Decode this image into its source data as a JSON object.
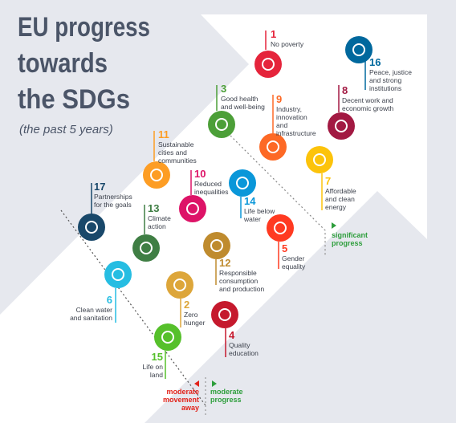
{
  "header": {
    "title_lines": [
      "EU progress",
      "towards",
      "the SDGs"
    ],
    "subtitle": "(the past 5 years)"
  },
  "goals": [
    {
      "number": "1",
      "label_lines": [
        "No poverty"
      ],
      "color": "#e5243b"
    },
    {
      "number": "16",
      "label_lines": [
        "Peace, justice",
        "and strong",
        "institutions"
      ],
      "color": "#00689d"
    },
    {
      "number": "8",
      "label_lines": [
        "Decent work and",
        "economic growth"
      ],
      "color": "#a21942"
    },
    {
      "number": "3",
      "label_lines": [
        "Good health",
        "and well-being"
      ],
      "color": "#4c9f38"
    },
    {
      "number": "9",
      "label_lines": [
        "Industry,",
        "innovation",
        "and",
        "infrastructure"
      ],
      "color": "#fd6925"
    },
    {
      "number": "11",
      "label_lines": [
        "Sustainable",
        "cities and",
        "communities"
      ],
      "color": "#fd9d24"
    },
    {
      "number": "7",
      "label_lines": [
        "Affordable",
        "and clean",
        "energy"
      ],
      "color": "#fcc30b"
    },
    {
      "number": "10",
      "label_lines": [
        "Reduced",
        "inequalities"
      ],
      "color": "#dd1367"
    },
    {
      "number": "14",
      "label_lines": [
        "Life below",
        "water"
      ],
      "color": "#0a97d9"
    },
    {
      "number": "17",
      "label_lines": [
        "Partnerships",
        "for the goals"
      ],
      "color": "#19486a"
    },
    {
      "number": "13",
      "label_lines": [
        "Climate",
        "action"
      ],
      "color": "#3f7e44"
    },
    {
      "number": "12",
      "label_lines": [
        "Responsible",
        "consumption",
        "and production"
      ],
      "color": "#bf8b2e"
    },
    {
      "number": "5",
      "label_lines": [
        "Gender",
        "equality"
      ],
      "color": "#ff3a21"
    },
    {
      "number": "6",
      "label_lines": [
        "Clean water",
        "and sanitation"
      ],
      "color": "#26bde2"
    },
    {
      "number": "2",
      "label_lines": [
        "Zero",
        "hunger"
      ],
      "color": "#dda63a"
    },
    {
      "number": "4",
      "label_lines": [
        "Quality",
        "education"
      ],
      "color": "#c5192d"
    },
    {
      "number": "15",
      "label_lines": [
        "Life on",
        "land"
      ],
      "color": "#56c02b"
    }
  ],
  "markers": {
    "significant_progress": [
      "significant",
      "progress"
    ],
    "moderate_progress": [
      "moderate",
      "progress"
    ],
    "moderate_movement_away": [
      "moderate",
      "movement",
      "away"
    ]
  }
}
